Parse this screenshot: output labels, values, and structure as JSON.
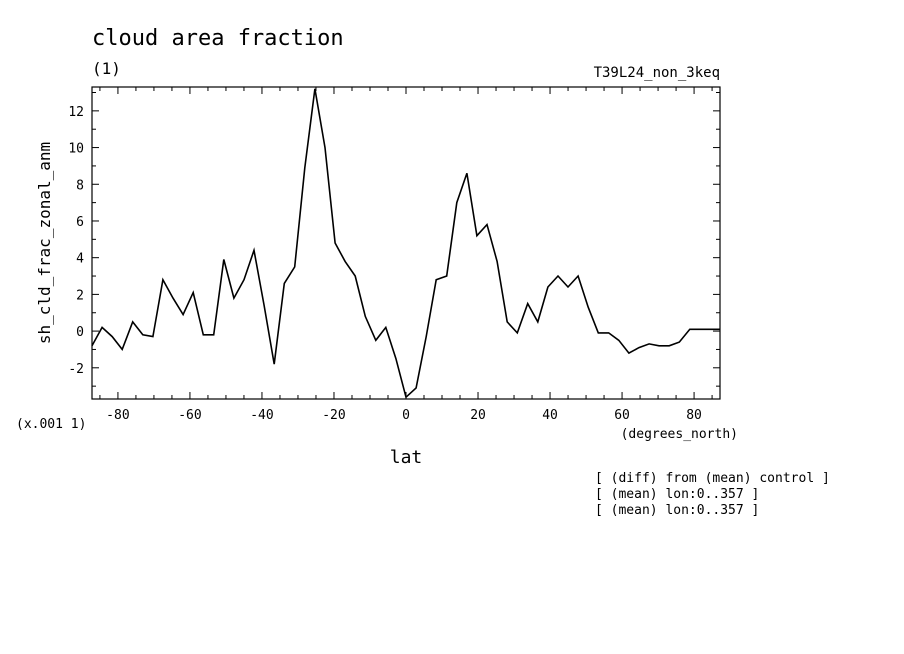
{
  "header": {
    "title": "cloud area fraction",
    "units": "(1)",
    "experiment": "T39L24_non_3keq"
  },
  "notes": [
    "[ (diff) from (mean) control ]",
    "[ (mean) lon:0..357 ]",
    "[ (mean) lon:0..357 ]"
  ],
  "chart_data": {
    "type": "line",
    "title": "cloud area fraction",
    "xlabel": "lat",
    "xunits": "(degrees_north)",
    "ylabel": "sh_cld_frac_zonal_anm",
    "yscale_label": "(x.001 1)",
    "xlim": [
      -87.2,
      87.2
    ],
    "ylim": [
      -3.7,
      13.3
    ],
    "xticks": [
      -80,
      -60,
      -40,
      -20,
      0,
      20,
      40,
      60,
      80
    ],
    "xtick_labels": [
      "-80",
      "-60",
      "-40",
      "-20",
      "0",
      "20",
      "40",
      "60",
      "80"
    ],
    "yticks": [
      -2,
      0,
      2,
      4,
      6,
      8,
      10,
      12
    ],
    "ytick_labels": [
      "-2",
      "0",
      "2",
      "4",
      "6",
      "8",
      "10",
      "12"
    ],
    "grid": false,
    "series": [
      {
        "color": "#000000",
        "x": [
          -87.2,
          -84.4,
          -81.6,
          -78.8,
          -75.9,
          -73.1,
          -70.3,
          -67.5,
          -64.7,
          -61.9,
          -59.1,
          -56.3,
          -53.4,
          -50.6,
          -47.8,
          -45.0,
          -42.2,
          -39.4,
          -36.6,
          -33.8,
          -30.9,
          -28.1,
          -25.3,
          -22.5,
          -19.7,
          -16.9,
          -14.1,
          -11.3,
          -8.4,
          -5.6,
          -2.8,
          0.0,
          2.8,
          5.6,
          8.4,
          11.3,
          14.1,
          16.9,
          19.7,
          22.5,
          25.3,
          28.1,
          30.9,
          33.8,
          36.6,
          39.4,
          42.2,
          45.0,
          47.8,
          50.6,
          53.4,
          56.3,
          59.1,
          61.9,
          64.7,
          67.5,
          70.3,
          73.1,
          75.9,
          78.8,
          81.6,
          84.4,
          87.2
        ],
        "y": [
          -0.8,
          0.2,
          -0.3,
          -1.0,
          0.5,
          -0.2,
          -0.3,
          2.8,
          1.8,
          0.9,
          2.1,
          -0.2,
          -0.2,
          3.9,
          1.8,
          2.8,
          4.4,
          1.4,
          -1.8,
          2.6,
          3.5,
          8.9,
          13.2,
          10.0,
          4.8,
          3.8,
          3.0,
          0.8,
          -0.5,
          0.2,
          -1.5,
          -3.6,
          -3.1,
          -0.3,
          2.8,
          3.0,
          7.0,
          8.6,
          5.2,
          5.8,
          3.8,
          0.5,
          -0.1,
          1.5,
          0.5,
          2.4,
          3.0,
          2.4,
          3.0,
          1.3,
          -0.1,
          -0.1,
          -0.5,
          -1.2,
          -0.9,
          -0.7,
          -0.8,
          -0.8,
          -0.6,
          0.1,
          0.1,
          0.1,
          0.1
        ]
      }
    ]
  }
}
